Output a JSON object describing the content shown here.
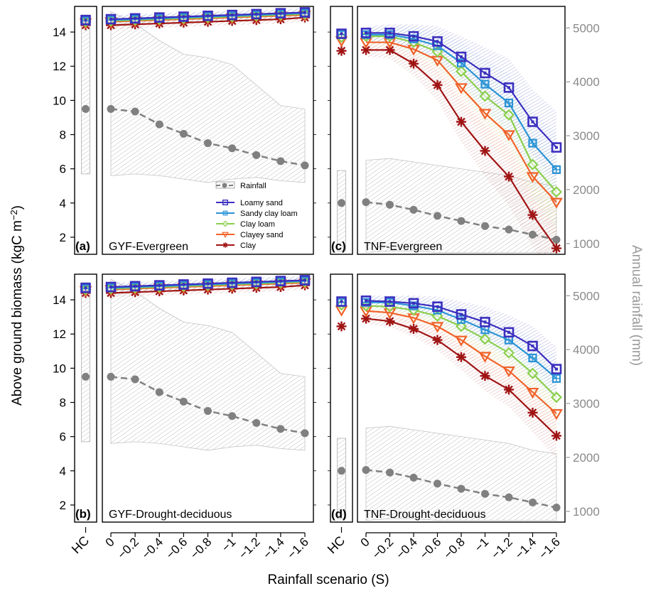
{
  "labels": {
    "ylabel_left": "Above ground biomass (kgC m",
    "ylabel_left_sup": "−2",
    "ylabel_left_end": ")",
    "ylabel_right": "Annual rainfall (mm)",
    "xlabel": "Rainfall scenario (S)",
    "hc_tick": "HC"
  },
  "colors": {
    "rainfall": "#808080",
    "Loamy sand": "#3b2fbf",
    "Sandy clay loam": "#2a93d5",
    "Clay loam": "#8ccf4d",
    "Clayey sand": "#f0622a",
    "Clay": "#a01414"
  },
  "legend": {
    "rainfall": "Rainfall",
    "soils": [
      "Loamy sand",
      "Sandy clay loam",
      "Clay loam",
      "Clayey sand",
      "Clay"
    ]
  },
  "chart_data": [
    {
      "panel": "(a)",
      "title": "GYF-Evergreen",
      "type": "line",
      "x": [
        0,
        -0.2,
        -0.4,
        -0.6,
        -0.8,
        -1,
        -1.2,
        -1.4,
        -1.6
      ],
      "x_tick_labels": [
        "0",
        "−0.2",
        "−0.4",
        "−0.6",
        "−0.8",
        "−1",
        "−1.2",
        "−1.4",
        "−1.6"
      ],
      "ylim": [
        1,
        15.5
      ],
      "yticks": [
        2,
        4,
        6,
        8,
        10,
        12,
        14
      ],
      "rain_axis": {
        "range": [
          600,
          5400
        ],
        "ticks": [
          1000,
          2000,
          3000,
          4000,
          5000
        ]
      },
      "hc": {
        "rainfall": 9.5,
        "rain_range": [
          5.7,
          15.0
        ],
        "soils": {
          "Loamy sand": 14.7,
          "Sandy clay loam": 14.65,
          "Clay loam": 14.6,
          "Clayey sand": 14.55,
          "Clay": 14.4
        }
      },
      "rainfall": {
        "values": [
          9.5,
          9.35,
          8.6,
          8.05,
          7.5,
          7.2,
          6.8,
          6.45,
          6.2
        ],
        "lower": [
          5.6,
          5.7,
          5.6,
          5.4,
          5.2,
          5.4,
          5.5,
          5.3,
          5.2
        ],
        "upper": [
          15.2,
          14.5,
          13.5,
          12.7,
          12.5,
          12.1,
          10.9,
          9.7,
          9.5
        ]
      },
      "series": [
        {
          "name": "Loamy sand",
          "values": [
            14.75,
            14.8,
            14.85,
            14.9,
            14.95,
            15.0,
            15.05,
            15.1,
            15.15
          ]
        },
        {
          "name": "Sandy clay loam",
          "values": [
            14.7,
            14.75,
            14.8,
            14.85,
            14.9,
            14.95,
            15.0,
            15.05,
            15.1
          ]
        },
        {
          "name": "Clay loam",
          "values": [
            14.65,
            14.7,
            14.75,
            14.8,
            14.85,
            14.9,
            14.95,
            15.0,
            15.05
          ]
        },
        {
          "name": "Clayey sand",
          "values": [
            14.6,
            14.65,
            14.7,
            14.75,
            14.8,
            14.85,
            14.9,
            14.95,
            15.0
          ]
        },
        {
          "name": "Clay",
          "values": [
            14.4,
            14.45,
            14.5,
            14.55,
            14.6,
            14.65,
            14.7,
            14.75,
            14.85
          ]
        }
      ],
      "bands": {
        "half_width": [
          0.25,
          0.25,
          0.25,
          0.25,
          0.25,
          0.25,
          0.25,
          0.25,
          0.25
        ]
      }
    },
    {
      "panel": "(b)",
      "title": "GYF-Drought-deciduous",
      "type": "line",
      "x": [
        0,
        -0.2,
        -0.4,
        -0.6,
        -0.8,
        -1,
        -1.2,
        -1.4,
        -1.6
      ],
      "x_tick_labels": [
        "0",
        "−0.2",
        "−0.4",
        "−0.6",
        "−0.8",
        "−1",
        "−1.2",
        "−1.4",
        "−1.6"
      ],
      "ylim": [
        1,
        15.5
      ],
      "yticks": [
        2,
        4,
        6,
        8,
        10,
        12,
        14
      ],
      "rain_axis": {
        "range": [
          600,
          5400
        ],
        "ticks": [
          1000,
          2000,
          3000,
          4000,
          5000
        ]
      },
      "hc": {
        "rainfall": 9.5,
        "rain_range": [
          5.7,
          15.0
        ],
        "soils": {
          "Loamy sand": 14.7,
          "Sandy clay loam": 14.65,
          "Clay loam": 14.6,
          "Clayey sand": 14.55,
          "Clay": 14.4
        }
      },
      "rainfall": {
        "values": [
          9.5,
          9.35,
          8.6,
          8.05,
          7.5,
          7.2,
          6.8,
          6.45,
          6.2
        ],
        "lower": [
          5.6,
          5.7,
          5.6,
          5.4,
          5.2,
          5.4,
          5.5,
          5.3,
          5.2
        ],
        "upper": [
          15.2,
          14.5,
          13.5,
          12.7,
          12.5,
          12.1,
          10.9,
          9.7,
          9.5
        ]
      },
      "series": [
        {
          "name": "Loamy sand",
          "values": [
            14.75,
            14.8,
            14.85,
            14.9,
            14.95,
            15.0,
            15.05,
            15.1,
            15.15
          ]
        },
        {
          "name": "Sandy clay loam",
          "values": [
            14.7,
            14.75,
            14.8,
            14.85,
            14.9,
            14.95,
            15.0,
            15.05,
            15.1
          ]
        },
        {
          "name": "Clay loam",
          "values": [
            14.65,
            14.7,
            14.75,
            14.8,
            14.85,
            14.9,
            14.95,
            15.0,
            15.05
          ]
        },
        {
          "name": "Clayey sand",
          "values": [
            14.6,
            14.65,
            14.7,
            14.75,
            14.8,
            14.85,
            14.9,
            14.95,
            15.0
          ]
        },
        {
          "name": "Clay",
          "values": [
            14.4,
            14.45,
            14.5,
            14.55,
            14.6,
            14.65,
            14.7,
            14.75,
            14.85
          ]
        }
      ],
      "bands": {
        "half_width": [
          0.25,
          0.25,
          0.25,
          0.25,
          0.25,
          0.25,
          0.25,
          0.25,
          0.25
        ]
      }
    },
    {
      "panel": "(c)",
      "title": "TNF-Evergreen",
      "type": "line",
      "x": [
        0,
        -0.2,
        -0.4,
        -0.6,
        -0.8,
        -1,
        -1.2,
        -1.4,
        -1.6
      ],
      "x_tick_labels": [
        "0",
        "−0.2",
        "−0.4",
        "−0.6",
        "−0.8",
        "−1",
        "−1.2",
        "−1.4",
        "−1.6"
      ],
      "ylim": [
        1,
        15.5
      ],
      "yticks": [
        2,
        4,
        6,
        8,
        10,
        12,
        14
      ],
      "rain_axis": {
        "range": [
          800,
          5400
        ],
        "ticks": [
          1000,
          2000,
          3000,
          4000,
          5000
        ]
      },
      "hc": {
        "rainfall": 4.0,
        "rain_range": [
          1.2,
          5.9
        ],
        "soils": {
          "Loamy sand": 13.9,
          "Sandy clay loam": 13.85,
          "Clay loam": 13.7,
          "Clayey sand": 13.5,
          "Clay": 12.9
        }
      },
      "rainfall": {
        "values": [
          4.05,
          3.9,
          3.6,
          3.25,
          2.95,
          2.65,
          2.45,
          2.15,
          1.85
        ],
        "lower": [
          1.1,
          1.2,
          1.2,
          1.1,
          1.1,
          1.1,
          1.1,
          1.1,
          1.1
        ],
        "upper": [
          6.5,
          6.6,
          6.4,
          6.2,
          6.0,
          5.8,
          5.6,
          5.2,
          5.0
        ]
      },
      "series": [
        {
          "name": "Loamy sand",
          "values": [
            13.95,
            13.95,
            13.75,
            13.45,
            12.55,
            11.6,
            10.75,
            8.75,
            7.25
          ]
        },
        {
          "name": "Sandy clay loam",
          "values": [
            13.85,
            13.85,
            13.6,
            13.2,
            12.2,
            10.95,
            9.85,
            7.5,
            5.95
          ]
        },
        {
          "name": "Clay loam",
          "values": [
            13.75,
            13.75,
            13.4,
            12.85,
            11.7,
            10.25,
            9.15,
            6.25,
            4.65
          ]
        },
        {
          "name": "Clayey sand",
          "values": [
            13.4,
            13.4,
            13.0,
            12.35,
            10.75,
            9.25,
            8.0,
            5.55,
            4.05
          ]
        },
        {
          "name": "Clay",
          "values": [
            12.95,
            12.95,
            12.15,
            10.9,
            8.75,
            7.05,
            5.55,
            3.3,
            1.35
          ]
        }
      ],
      "bands": {
        "half_width": [
          0.4,
          0.5,
          0.7,
          0.9,
          1.2,
          1.5,
          1.7,
          1.9,
          2.1
        ]
      }
    },
    {
      "panel": "(d)",
      "title": "TNF-Drought-deciduous",
      "type": "line",
      "x": [
        0,
        -0.2,
        -0.4,
        -0.6,
        -0.8,
        -1,
        -1.2,
        -1.4,
        -1.6
      ],
      "x_tick_labels": [
        "0",
        "−0.2",
        "−0.4",
        "−0.6",
        "−0.8",
        "−1",
        "−1.2",
        "−1.4",
        "−1.6"
      ],
      "ylim": [
        1,
        15.5
      ],
      "yticks": [
        2,
        4,
        6,
        8,
        10,
        12,
        14
      ],
      "rain_axis": {
        "range": [
          800,
          5400
        ],
        "ticks": [
          1000,
          2000,
          3000,
          4000,
          5000
        ]
      },
      "hc": {
        "rainfall": 4.0,
        "rain_range": [
          1.2,
          5.9
        ],
        "soils": {
          "Loamy sand": 13.9,
          "Sandy clay loam": 13.85,
          "Clay loam": 13.7,
          "Clayey sand": 13.4,
          "Clay": 12.45
        }
      },
      "rainfall": {
        "values": [
          4.05,
          3.9,
          3.6,
          3.25,
          2.95,
          2.65,
          2.45,
          2.15,
          1.85
        ],
        "lower": [
          1.1,
          1.2,
          1.2,
          1.1,
          1.1,
          1.1,
          1.1,
          1.1,
          1.1
        ],
        "upper": [
          6.5,
          6.6,
          6.4,
          6.2,
          6.0,
          5.8,
          5.6,
          5.2,
          5.0
        ]
      },
      "series": [
        {
          "name": "Loamy sand",
          "values": [
            13.95,
            13.9,
            13.8,
            13.6,
            13.15,
            12.7,
            12.1,
            11.3,
            9.95
          ]
        },
        {
          "name": "Sandy clay loam",
          "values": [
            13.85,
            13.85,
            13.65,
            13.4,
            12.85,
            12.25,
            11.65,
            10.6,
            9.4
          ]
        },
        {
          "name": "Clay loam",
          "values": [
            13.65,
            13.6,
            13.4,
            13.05,
            12.45,
            11.7,
            10.9,
            9.7,
            8.3
          ]
        },
        {
          "name": "Clayey sand",
          "values": [
            13.35,
            13.25,
            12.95,
            12.45,
            11.65,
            10.7,
            9.85,
            8.6,
            7.35
          ]
        },
        {
          "name": "Clay",
          "values": [
            12.9,
            12.75,
            12.3,
            11.65,
            10.65,
            9.55,
            8.75,
            7.4,
            6.05
          ]
        }
      ],
      "bands": {
        "half_width": [
          0.3,
          0.35,
          0.45,
          0.6,
          0.75,
          0.9,
          1.0,
          1.15,
          1.3
        ]
      }
    }
  ]
}
